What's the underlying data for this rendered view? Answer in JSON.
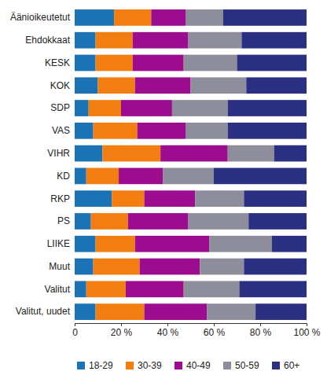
{
  "chart_data": {
    "type": "bar",
    "orientation": "horizontal",
    "stacked": true,
    "grid": false,
    "legend": "bottom",
    "categories": [
      "Äänioikeutetut",
      "Ehdokkaat",
      "KESK",
      "KOK",
      "SDP",
      "VAS",
      "VIHR",
      "KD",
      "RKP",
      "PS",
      "LIIKE",
      "Muut",
      "Valitut",
      "Valitut, uudet"
    ],
    "xlim": [
      0,
      100
    ],
    "xticks": [
      0,
      {
        "value": 20,
        "label": "20 %"
      },
      {
        "value": 40,
        "label": "40 %"
      },
      {
        "value": 60,
        "label": "60 %"
      },
      {
        "value": 80,
        "label": "80 %"
      },
      {
        "value": 100,
        "label": "100 %"
      }
    ],
    "series": [
      {
        "name": "18-29",
        "color": "#1b72b4",
        "values": [
          17,
          9,
          9,
          10,
          6,
          8,
          12,
          5,
          16,
          7,
          9,
          8,
          5,
          9
        ]
      },
      {
        "name": "30-39",
        "color": "#f27d10",
        "values": [
          16,
          16,
          16,
          16,
          14,
          19,
          25,
          14,
          14,
          16,
          17,
          20,
          17,
          21
        ]
      },
      {
        "name": "40-49",
        "color": "#9b0d8e",
        "values": [
          15,
          24,
          22,
          24,
          22,
          21,
          29,
          19,
          22,
          26,
          32,
          26,
          25,
          27
        ]
      },
      {
        "name": "50-59",
        "color": "#8d8d9b",
        "values": [
          16,
          23,
          23,
          24,
          24,
          18,
          20,
          22,
          21,
          26,
          27,
          19,
          24,
          21
        ]
      },
      {
        "name": "60+",
        "color": "#2b2f82",
        "values": [
          36,
          28,
          30,
          26,
          34,
          34,
          14,
          40,
          27,
          25,
          15,
          27,
          29,
          22
        ]
      }
    ]
  }
}
